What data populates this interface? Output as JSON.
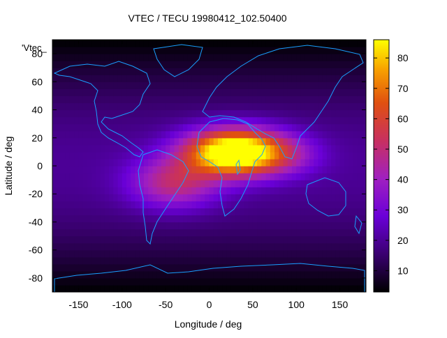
{
  "chart_data": {
    "type": "heatmap",
    "title": "VTEC / TECU 19980412_102.50400",
    "xlabel": "Longitude / deg",
    "ylabel": "Latitude / deg",
    "key_label": "'Vtec_",
    "xlim": [
      -180,
      180
    ],
    "ylim": [
      -90,
      90
    ],
    "x_ticks": [
      -150,
      -100,
      -50,
      0,
      50,
      100,
      150
    ],
    "y_ticks": [
      -80,
      -60,
      -40,
      -20,
      0,
      20,
      40,
      60,
      80
    ],
    "colorbar": {
      "min": 3,
      "max": 86,
      "ticks": [
        10,
        20,
        30,
        40,
        50,
        60,
        70,
        80
      ]
    },
    "grid": false,
    "field_peaks": [
      {
        "lon": 30,
        "lat": 10,
        "value": 85,
        "lon_spread": 55,
        "lat_spread": 16
      },
      {
        "lon": -40,
        "lat": -12,
        "value": 30,
        "lon_spread": 50,
        "lat_spread": 18
      },
      {
        "lon": 90,
        "lat": 8,
        "value": 12,
        "lon_spread": 40,
        "lat_spread": 14
      }
    ],
    "background_value": 17
  }
}
